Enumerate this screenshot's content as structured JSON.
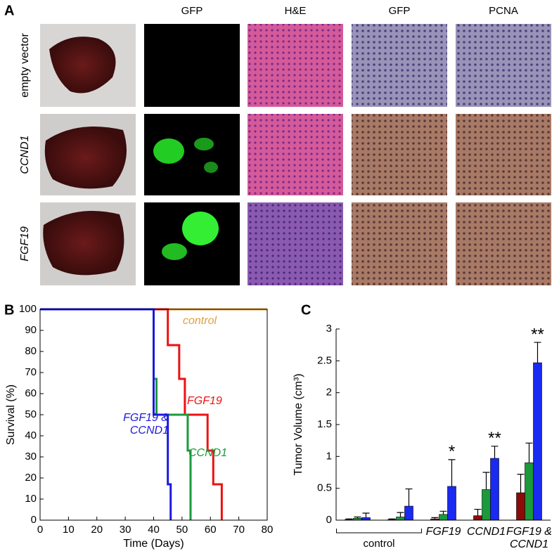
{
  "panel_a": {
    "label": "A",
    "columns": [
      "GFP",
      "H&E",
      "GFP",
      "PCNA"
    ],
    "rows": [
      "empty vector",
      "CCND1",
      "FGF19"
    ]
  },
  "chart_data": [
    {
      "type": "line",
      "label": "B",
      "x_label": "Time (Days)",
      "y_label": "Survival (%)",
      "xlim": [
        0,
        80
      ],
      "xticks": [
        0,
        10,
        20,
        30,
        40,
        50,
        60,
        70,
        80
      ],
      "ylim": [
        0,
        100
      ],
      "yticks": [
        0,
        10,
        20,
        30,
        40,
        50,
        60,
        70,
        80,
        90,
        100
      ],
      "series": [
        {
          "name": "control",
          "color": "#e0a040",
          "x": [
            0,
            80
          ],
          "values": [
            100,
            100
          ]
        },
        {
          "name": "FGF19",
          "color": "#ee1111",
          "x": [
            40,
            45,
            45,
            49,
            49,
            51,
            51,
            59,
            59,
            61,
            61,
            64,
            64
          ],
          "values": [
            100,
            100,
            83,
            83,
            67,
            67,
            50,
            50,
            33,
            33,
            17,
            17,
            0
          ]
        },
        {
          "name": "CCND1",
          "color": "#1a9a3a",
          "x": [
            40,
            40,
            41,
            41,
            52,
            52,
            53,
            53
          ],
          "values": [
            100,
            67,
            67,
            50,
            50,
            33,
            33,
            0
          ]
        },
        {
          "name": "FGF19 & CCND1",
          "color": "#1a1add",
          "x": [
            0,
            40,
            40,
            45,
            45,
            46,
            46
          ],
          "values": [
            100,
            100,
            50,
            50,
            17,
            17,
            0
          ]
        }
      ]
    },
    {
      "type": "bar",
      "label": "C",
      "y_label": "Tumor Volume (cm³)",
      "ylim": [
        0,
        3
      ],
      "yticks": [
        0,
        0.5,
        1,
        1.5,
        2,
        2.5,
        3
      ],
      "categories": [
        null,
        null,
        "FGF19",
        "CCND1",
        "FGF19 & CCND1"
      ],
      "group_label": "control",
      "significance": [
        null,
        null,
        "*",
        "**",
        "**"
      ],
      "series": [
        {
          "color": "#8b0a0a",
          "values": [
            0.01,
            0.01,
            0.02,
            0.07,
            0.43
          ],
          "errors": [
            0.01,
            0.01,
            0.02,
            0.1,
            0.29
          ]
        },
        {
          "color": "#1a9a3a",
          "values": [
            0.03,
            0.05,
            0.09,
            0.48,
            0.9
          ],
          "errors": [
            0.02,
            0.07,
            0.05,
            0.27,
            0.31
          ]
        },
        {
          "color": "#1a2af0",
          "values": [
            0.04,
            0.22,
            0.53,
            0.97,
            2.47
          ],
          "errors": [
            0.07,
            0.27,
            0.42,
            0.19,
            0.32
          ]
        }
      ]
    }
  ]
}
